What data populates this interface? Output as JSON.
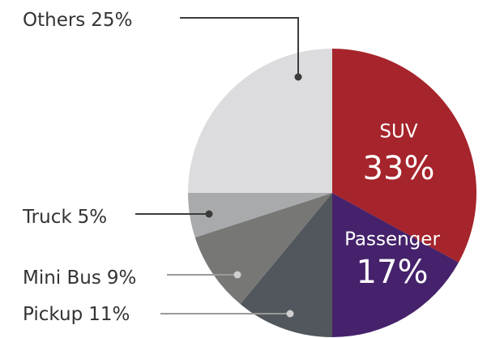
{
  "chart_data": {
    "type": "pie",
    "categories": [
      "SUV",
      "Passenger",
      "Pickup",
      "Mini Bus",
      "Truck",
      "Others"
    ],
    "values": [
      33,
      17,
      11,
      9,
      5,
      25
    ],
    "value_labels": [
      "33%",
      "17%",
      "11%",
      "9%",
      "5%",
      "25%"
    ],
    "colors": [
      "#a6242b",
      "#45226b",
      "#51575c",
      "#777776",
      "#a8aaab",
      "#dcdcde"
    ]
  }
}
